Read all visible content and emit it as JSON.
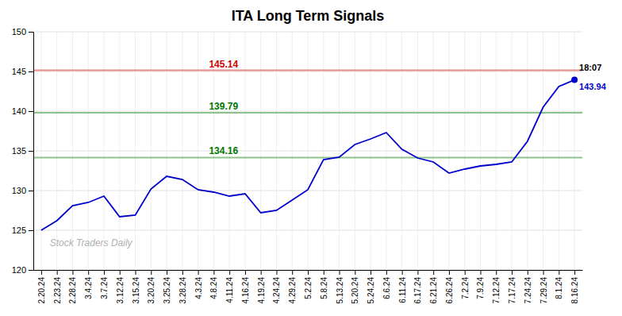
{
  "chart_data": {
    "type": "line",
    "title": "ITA Long Term Signals",
    "categories": [
      "2.20.24",
      "2.23.24",
      "2.28.24",
      "3.4.24",
      "3.7.24",
      "3.12.24",
      "3.15.24",
      "3.20.24",
      "3.25.24",
      "3.28.24",
      "4.3.24",
      "4.8.24",
      "4.11.24",
      "4.16.24",
      "4.19.24",
      "4.24.24",
      "4.29.24",
      "5.2.24",
      "5.8.24",
      "5.13.24",
      "5.20.24",
      "5.24.24",
      "6.6.24",
      "6.11.24",
      "6.17.24",
      "6.21.24",
      "6.26.24",
      "7.2.24",
      "7.9.24",
      "7.12.24",
      "7.17.24",
      "7.24.24",
      "7.29.24",
      "8.1.24",
      "8.16.24"
    ],
    "values": [
      125.0,
      126.2,
      128.1,
      128.5,
      129.3,
      126.7,
      126.9,
      130.2,
      131.8,
      131.4,
      130.1,
      129.8,
      129.3,
      129.6,
      127.2,
      127.5,
      128.8,
      130.1,
      133.9,
      134.2,
      135.8,
      136.5,
      137.3,
      135.2,
      134.1,
      133.6,
      132.2,
      132.7,
      133.1,
      133.3,
      133.6,
      136.2,
      140.5,
      143.1,
      143.94
    ],
    "color": "#0000cc",
    "ylim": [
      120,
      150
    ],
    "yticks": [
      120,
      125,
      130,
      135,
      140,
      145,
      150
    ],
    "grid": true,
    "reference_lines": [
      {
        "value": 145.14,
        "color": "#cc0000"
      },
      {
        "value": 139.79,
        "color": "#007700"
      },
      {
        "value": 134.16,
        "color": "#007700"
      }
    ],
    "last_value": 143.94,
    "annotations": [
      "18:07",
      "Stock Traders Daily"
    ]
  }
}
